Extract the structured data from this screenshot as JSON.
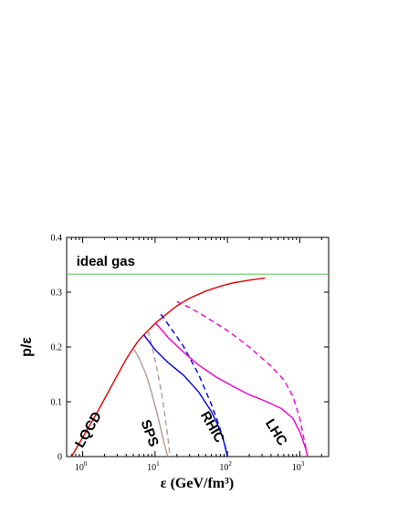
{
  "chart_data": {
    "type": "line",
    "xlabel": "ε (GeV/fm³)",
    "ylabel": "p/ε",
    "xscale": "log",
    "xlim": [
      0.6,
      2500
    ],
    "ylim": [
      0,
      0.4
    ],
    "yticks": [
      0,
      0.1,
      0.2,
      0.3,
      0.4
    ],
    "ytick_labels": [
      "0",
      "0.1",
      "0.2",
      "0.3",
      "0.4"
    ],
    "xticks": [
      1,
      10,
      100,
      1000
    ],
    "xtick_labels": [
      {
        "base": "10",
        "exp": "0"
      },
      {
        "base": "10",
        "exp": "1"
      },
      {
        "base": "10",
        "exp": "2"
      },
      {
        "base": "10",
        "exp": "3"
      }
    ],
    "grid": false,
    "legend": "none",
    "ideal_gas": {
      "label": "ideal gas",
      "value": 0.333,
      "color": "#66cc66"
    },
    "series": [
      {
        "color": "#e00000",
        "dash": false,
        "x": [
          0.7,
          1.0,
          1.5,
          2.2,
          3.0,
          4.0,
          5.0,
          6.0,
          8.0,
          10,
          15,
          20,
          30,
          50,
          80,
          120,
          200,
          330
        ],
        "y": [
          0.0,
          0.035,
          0.075,
          0.115,
          0.148,
          0.178,
          0.198,
          0.213,
          0.23,
          0.243,
          0.262,
          0.275,
          0.289,
          0.302,
          0.311,
          0.317,
          0.322,
          0.326
        ]
      },
      {
        "color": "#b39b91",
        "dash": false,
        "x": [
          5.0,
          6.0,
          7.5,
          9.0,
          10.5,
          12.0,
          13.5,
          15.0
        ],
        "y": [
          0.198,
          0.18,
          0.15,
          0.116,
          0.082,
          0.05,
          0.022,
          0.0
        ]
      },
      {
        "color": "#b39b91",
        "dash": true,
        "x": [
          8.0,
          9.5,
          11.0,
          12.5,
          13.5,
          14.5,
          15.5,
          16.0
        ],
        "y": [
          0.23,
          0.19,
          0.15,
          0.11,
          0.08,
          0.05,
          0.02,
          0.0
        ]
      },
      {
        "color": "#0000dd",
        "dash": false,
        "x": [
          7.0,
          10,
          15,
          25,
          40,
          60,
          75,
          88,
          95,
          100
        ],
        "y": [
          0.222,
          0.195,
          0.172,
          0.148,
          0.118,
          0.082,
          0.055,
          0.03,
          0.012,
          0.0
        ]
      },
      {
        "color": "#0000dd",
        "dash": true,
        "x": [
          12,
          17,
          25,
          40,
          60,
          75,
          88,
          96,
          100
        ],
        "y": [
          0.26,
          0.232,
          0.2,
          0.15,
          0.095,
          0.06,
          0.03,
          0.012,
          0.0
        ]
      },
      {
        "color": "#ee00cc",
        "dash": false,
        "x": [
          10,
          15,
          25,
          40,
          70,
          120,
          200,
          350,
          550,
          800,
          1000,
          1100,
          1200,
          1280
        ],
        "y": [
          0.245,
          0.218,
          0.19,
          0.167,
          0.145,
          0.128,
          0.113,
          0.1,
          0.088,
          0.07,
          0.045,
          0.03,
          0.015,
          0.0
        ]
      },
      {
        "color": "#ee00cc",
        "dash": true,
        "x": [
          20,
          30,
          50,
          100,
          200,
          400,
          600,
          800,
          1000,
          1150,
          1280
        ],
        "y": [
          0.283,
          0.272,
          0.255,
          0.23,
          0.2,
          0.165,
          0.14,
          0.11,
          0.07,
          0.03,
          0.0
        ]
      }
    ],
    "annotations": [
      {
        "text": "ideal gas",
        "x": 0.82,
        "y": 0.348,
        "rotate": 0
      },
      {
        "text": "LQCD",
        "x": 1.35,
        "y": 0.045,
        "rotate": -60
      },
      {
        "text": "SPS",
        "x": 7.4,
        "y": 0.04,
        "rotate": 70
      },
      {
        "text": "RHIC",
        "x": 55,
        "y": 0.05,
        "rotate": 60
      },
      {
        "text": "LHC",
        "x": 420,
        "y": 0.04,
        "rotate": 58
      }
    ]
  }
}
